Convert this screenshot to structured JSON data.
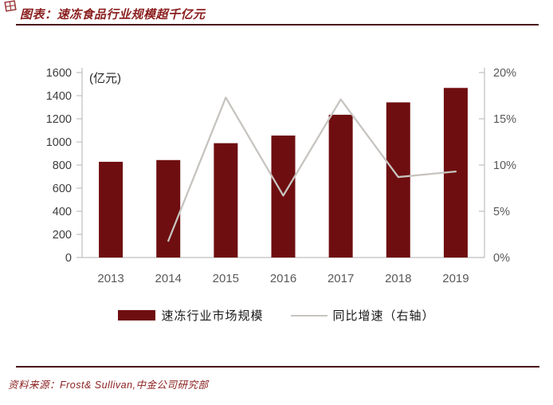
{
  "header": {
    "title": "图表：速冻食品行业规模超千亿元"
  },
  "chart_data": {
    "type": "bar",
    "subtype": "bar-line-combo",
    "title": "图表：速冻食品行业规模超千亿元",
    "unit_label": "(亿元)",
    "categories": [
      "2013",
      "2014",
      "2015",
      "2016",
      "2017",
      "2018",
      "2019"
    ],
    "series": [
      {
        "name": "速冻行业市场规模",
        "type": "bar",
        "axis": "left",
        "values": [
          828,
          843,
          989,
          1055,
          1235,
          1342,
          1467
        ]
      },
      {
        "name": "同比增速（右轴）",
        "type": "line",
        "axis": "right",
        "values": [
          null,
          1.8,
          17.3,
          6.7,
          17.1,
          8.7,
          9.3
        ]
      }
    ],
    "left_axis": {
      "min": 0,
      "max": 1600,
      "step": 200,
      "tick_labels": [
        "0",
        "200",
        "400",
        "600",
        "800",
        "1000",
        "1200",
        "1400",
        "1600"
      ]
    },
    "right_axis": {
      "min": 0,
      "max": 20,
      "step": 5,
      "tick_labels": [
        "0%",
        "5%",
        "10%",
        "15%",
        "20%"
      ]
    },
    "grid": false,
    "legend_position": "bottom"
  },
  "colors": {
    "bar": "#6f0e10",
    "line": "#c7c4c0",
    "axis": "#c0bfbf",
    "left_tick_label": "#3d3d3d",
    "right_tick_label": "#595959",
    "x_tick_label": "#595959",
    "accent": "#8b1e1e",
    "rule": "#4a0d14"
  },
  "footer": {
    "source": "资料来源：Frost& Sullivan,中金公司研究部"
  }
}
